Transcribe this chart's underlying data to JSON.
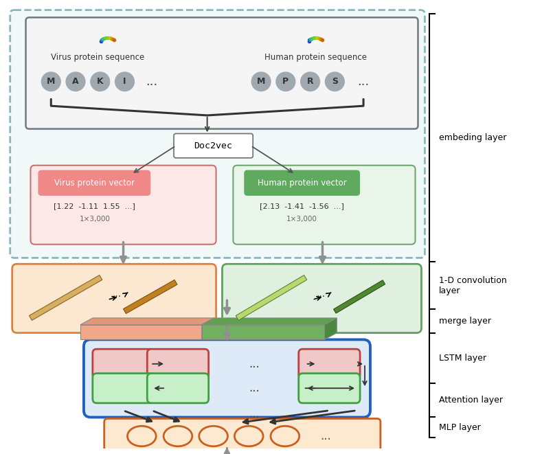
{
  "bg_color": "#ffffff",
  "fig_width": 7.89,
  "fig_height": 6.61,
  "layers": [
    "embeding layer",
    "1-D convolution\nlayer",
    "merge layer",
    "LSTM layer",
    "Attention layer",
    "MLP layer"
  ],
  "virus_seq_label": "Virus protein sequence",
  "human_seq_label": "Human protein sequence",
  "doc2vec_label": "Doc2vec",
  "virus_vec_label": "Virus protein vector",
  "human_vec_label": "Human protein vector",
  "virus_vec_vals": "[1.22  -1.11  1.55  ...]",
  "human_vec_vals": "[2.13  -1.41  -1.56  ...]",
  "virus_dim": "1×3,000",
  "human_dim": "1×3,000"
}
